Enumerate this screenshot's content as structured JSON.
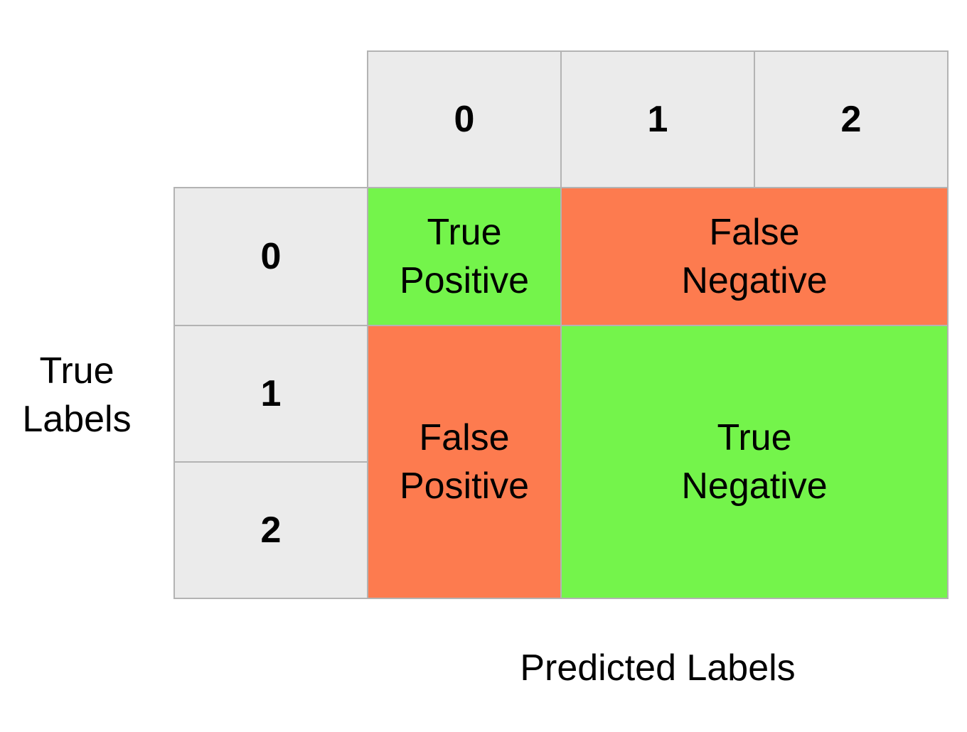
{
  "colors": {
    "header_bg": "#ebebeb",
    "border": "#b3b3b3",
    "correct": "#74f44b",
    "incorrect": "#fd7b4f"
  },
  "column_headers": [
    "0",
    "1",
    "2"
  ],
  "row_headers": [
    "0",
    "1",
    "2"
  ],
  "quadrants": {
    "top_left": {
      "line1": "True",
      "line2": "Positive"
    },
    "top_right": {
      "line1": "False",
      "line2": "Negative"
    },
    "bottom_left": {
      "line1": "False",
      "line2": "Positive"
    },
    "bottom_right": {
      "line1": "True",
      "line2": "Negative"
    }
  },
  "axis_labels": {
    "y": {
      "line1": "True",
      "line2": "Labels"
    },
    "x": "Predicted Labels"
  }
}
